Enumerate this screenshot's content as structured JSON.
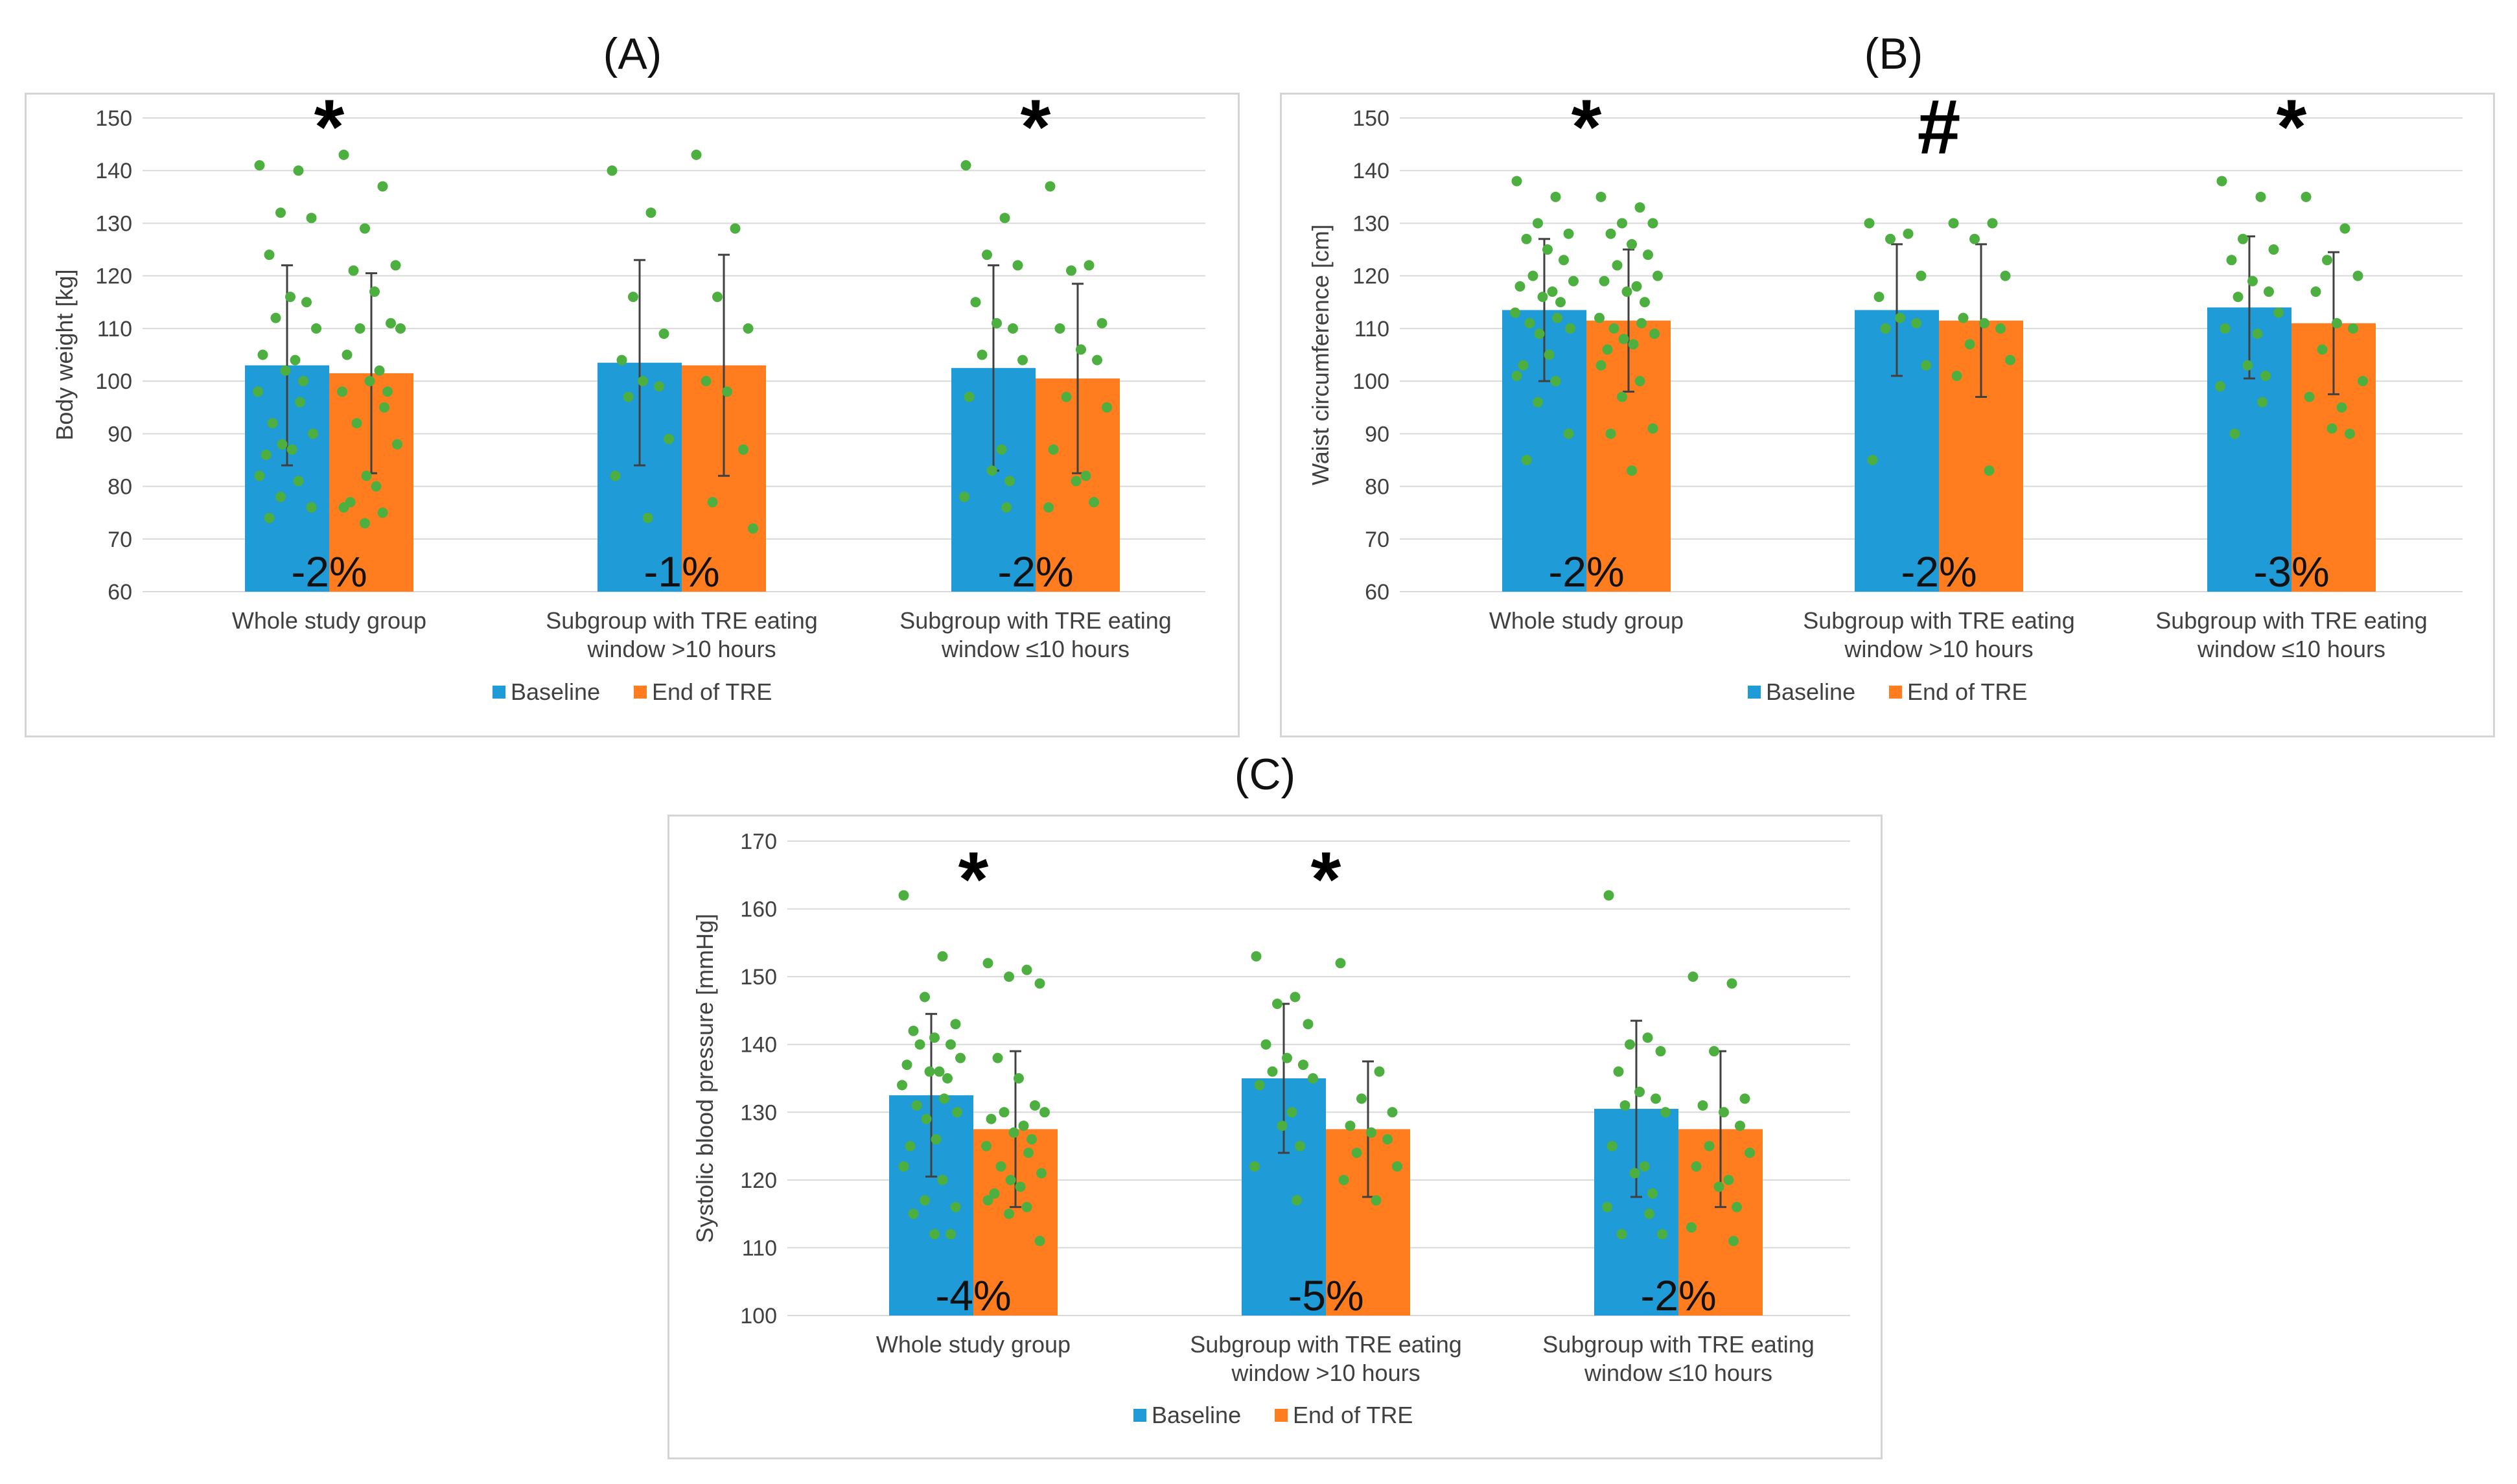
{
  "colors": {
    "baseline": "#1f9bd7",
    "end": "#ff7d1f",
    "points": "#4caf3f",
    "grid": "#d9d9d9",
    "error": "#404040"
  },
  "legend": {
    "baseline": "Baseline",
    "end": "End of TRE"
  },
  "chart_data": [
    {
      "panel": "(A)",
      "type": "bar",
      "ylabel": "Body weight [kg]",
      "ylim": [
        60,
        150
      ],
      "yticks": [
        60,
        70,
        80,
        90,
        100,
        110,
        120,
        130,
        140,
        150
      ],
      "categories": [
        [
          "Whole study group"
        ],
        [
          "Subgroup with TRE eating",
          "window >10 hours"
        ],
        [
          "Subgroup with TRE eating",
          "window ≤10 hours"
        ]
      ],
      "series": [
        {
          "name": "Baseline",
          "values": [
            103,
            103.5,
            102.5
          ],
          "err": [
            19,
            19.5,
            19.5
          ]
        },
        {
          "name": "End of TRE",
          "values": [
            101.5,
            103,
            100.5
          ],
          "err": [
            19,
            21,
            18
          ]
        }
      ],
      "pct_labels": [
        "-2%",
        "-1%",
        "-2%"
      ],
      "significance": [
        "*",
        "",
        "*"
      ],
      "points": [
        [
          [
            141,
            140,
            132,
            131,
            124,
            116,
            115,
            112,
            110,
            105,
            104,
            102,
            100,
            98,
            96,
            92,
            90,
            88,
            87,
            86,
            82,
            81,
            78,
            76,
            74
          ],
          [
            143,
            137,
            129,
            122,
            121,
            117,
            111,
            110,
            110,
            105,
            102,
            100,
            98,
            98,
            95,
            92,
            88,
            82,
            80,
            77,
            76,
            75,
            73
          ]
        ],
        [
          [
            140,
            132,
            116,
            109,
            104,
            100,
            99,
            97,
            89,
            82,
            74
          ],
          [
            143,
            129,
            116,
            110,
            100,
            98,
            87,
            77,
            72
          ]
        ],
        [
          [
            141,
            131,
            124,
            122,
            115,
            111,
            110,
            105,
            104,
            97,
            87,
            83,
            81,
            78,
            76
          ],
          [
            137,
            122,
            121,
            111,
            110,
            106,
            104,
            97,
            95,
            87,
            82,
            81,
            77,
            76
          ]
        ]
      ]
    },
    {
      "panel": "(B)",
      "type": "bar",
      "ylabel": "Waist circumference [cm]",
      "ylim": [
        60,
        150
      ],
      "yticks": [
        60,
        70,
        80,
        90,
        100,
        110,
        120,
        130,
        140,
        150
      ],
      "categories": [
        [
          "Whole study group"
        ],
        [
          "Subgroup with TRE eating",
          "window >10 hours"
        ],
        [
          "Subgroup with TRE eating",
          "window ≤10 hours"
        ]
      ],
      "series": [
        {
          "name": "Baseline",
          "values": [
            113.5,
            113.5,
            114
          ],
          "err": [
            13.5,
            12.5,
            13.5
          ]
        },
        {
          "name": "End of TRE",
          "values": [
            111.5,
            111.5,
            111
          ],
          "err": [
            13.5,
            14.5,
            13.5
          ]
        }
      ],
      "pct_labels": [
        "-2%",
        "-2%",
        "-3%"
      ],
      "significance": [
        "*",
        "#",
        "*"
      ],
      "points": [
        [
          [
            138,
            135,
            130,
            128,
            127,
            125,
            123,
            120,
            119,
            118,
            117,
            116,
            115,
            113,
            112,
            111,
            110,
            109,
            105,
            103,
            101,
            100,
            96,
            90,
            85
          ],
          [
            135,
            133,
            130,
            130,
            128,
            126,
            124,
            122,
            120,
            119,
            118,
            117,
            115,
            112,
            111,
            110,
            109,
            108,
            107,
            106,
            103,
            100,
            97,
            91,
            90,
            83
          ]
        ],
        [
          [
            130,
            128,
            127,
            120,
            116,
            112,
            111,
            110,
            103,
            85
          ],
          [
            130,
            130,
            127,
            120,
            112,
            111,
            110,
            107,
            104,
            101,
            83
          ]
        ],
        [
          [
            138,
            135,
            127,
            125,
            123,
            119,
            117,
            116,
            113,
            110,
            109,
            103,
            101,
            99,
            96,
            90
          ],
          [
            135,
            129,
            123,
            120,
            117,
            111,
            110,
            106,
            100,
            97,
            95,
            91,
            90
          ]
        ]
      ]
    },
    {
      "panel": "(C)",
      "type": "bar",
      "ylabel": "Systolic blood pressure [mmHg]",
      "ylim": [
        100,
        170
      ],
      "yticks": [
        100,
        110,
        120,
        130,
        140,
        150,
        160,
        170
      ],
      "categories": [
        [
          "Whole study group"
        ],
        [
          "Subgroup with TRE eating",
          "window >10 hours"
        ],
        [
          "Subgroup with TRE eating",
          "window ≤10 hours"
        ]
      ],
      "series": [
        {
          "name": "Baseline",
          "values": [
            132.5,
            135,
            130.5
          ],
          "err": [
            12,
            11,
            13
          ]
        },
        {
          "name": "End of TRE",
          "values": [
            127.5,
            127.5,
            127.5
          ],
          "err": [
            11.5,
            10,
            11.5
          ]
        }
      ],
      "pct_labels": [
        "-4%",
        "-5%",
        "-2%"
      ],
      "significance": [
        "*",
        "*",
        ""
      ],
      "points": [
        [
          [
            162,
            153,
            147,
            143,
            142,
            141,
            140,
            140,
            138,
            137,
            136,
            136,
            135,
            134,
            132,
            131,
            130,
            129,
            126,
            125,
            122,
            120,
            117,
            116,
            115,
            112,
            112
          ],
          [
            152,
            151,
            150,
            149,
            138,
            135,
            131,
            130,
            130,
            129,
            128,
            127,
            126,
            125,
            124,
            122,
            121,
            120,
            119,
            118,
            117,
            116,
            115,
            111
          ]
        ],
        [
          [
            153,
            147,
            146,
            143,
            140,
            138,
            137,
            136,
            135,
            134,
            130,
            128,
            125,
            122,
            117
          ],
          [
            152,
            136,
            132,
            130,
            128,
            127,
            126,
            124,
            122,
            120,
            117
          ]
        ],
        [
          [
            162,
            141,
            140,
            139,
            136,
            133,
            132,
            131,
            130,
            125,
            122,
            121,
            118,
            116,
            115,
            112,
            112
          ],
          [
            150,
            149,
            139,
            132,
            131,
            130,
            128,
            125,
            124,
            122,
            120,
            119,
            116,
            113,
            111
          ]
        ]
      ]
    }
  ]
}
